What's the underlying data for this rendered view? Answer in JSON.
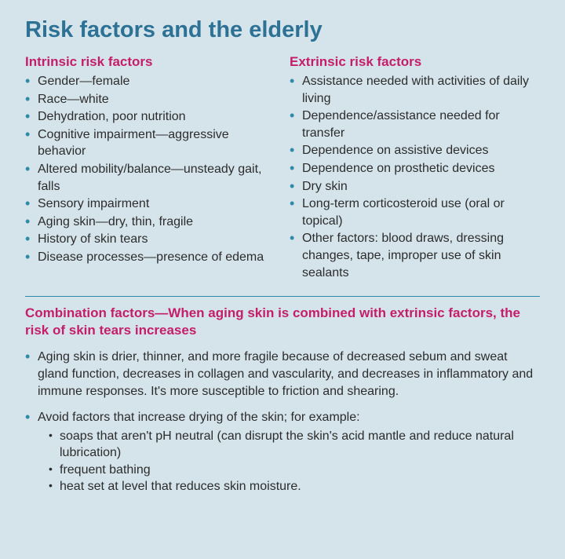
{
  "colors": {
    "background": "#d5e4eb",
    "title": "#2d7295",
    "heading": "#c41e6a",
    "bullet": "#2d8aa8",
    "text": "#2c2c2c",
    "divider": "#2d8aa8"
  },
  "typography": {
    "title_fontsize": 29,
    "heading_fontsize": 17,
    "body_fontsize": 16,
    "font_family": "Arial, Helvetica, sans-serif"
  },
  "title": "Risk factors and the elderly",
  "intrinsic": {
    "heading": "Intrinsic risk factors",
    "items": [
      "Gender—female",
      "Race—white",
      "Dehydration, poor nutrition",
      "Cognitive impairment—aggressive behavior",
      "Altered mobility/balance—unsteady gait, falls",
      "Sensory impairment",
      "Aging skin—dry, thin, fragile",
      "History of skin tears",
      "Disease processes—presence of edema"
    ]
  },
  "extrinsic": {
    "heading": "Extrinsic risk factors",
    "items": [
      "Assistance needed with activities of daily living",
      "Dependence/assistance needed for transfer",
      "Dependence on assistive devices",
      "Dependence on prosthetic devices",
      "Dry skin",
      "Long-term corticosteroid use (oral or topical)",
      "Other factors: blood draws, dressing changes, tape, improper use of skin sealants"
    ]
  },
  "combination": {
    "heading": "Combination factors—When aging skin is combined with extrinsic factors, the risk of skin tears increases",
    "items": [
      {
        "text": "Aging skin is drier, thinner, and more fragile because of decreased sebum and sweat gland function, decreases in collagen and vascularity, and decreases in inflammatory and immune responses. It's more susceptible to friction and shearing.",
        "sub": []
      },
      {
        "text": "Avoid factors that increase drying of the skin; for example:",
        "sub": [
          "soaps that aren't pH neutral (can disrupt the skin's acid mantle and reduce natural lubrication)",
          "frequent bathing",
          "heat set at level that reduces skin moisture."
        ]
      }
    ]
  }
}
